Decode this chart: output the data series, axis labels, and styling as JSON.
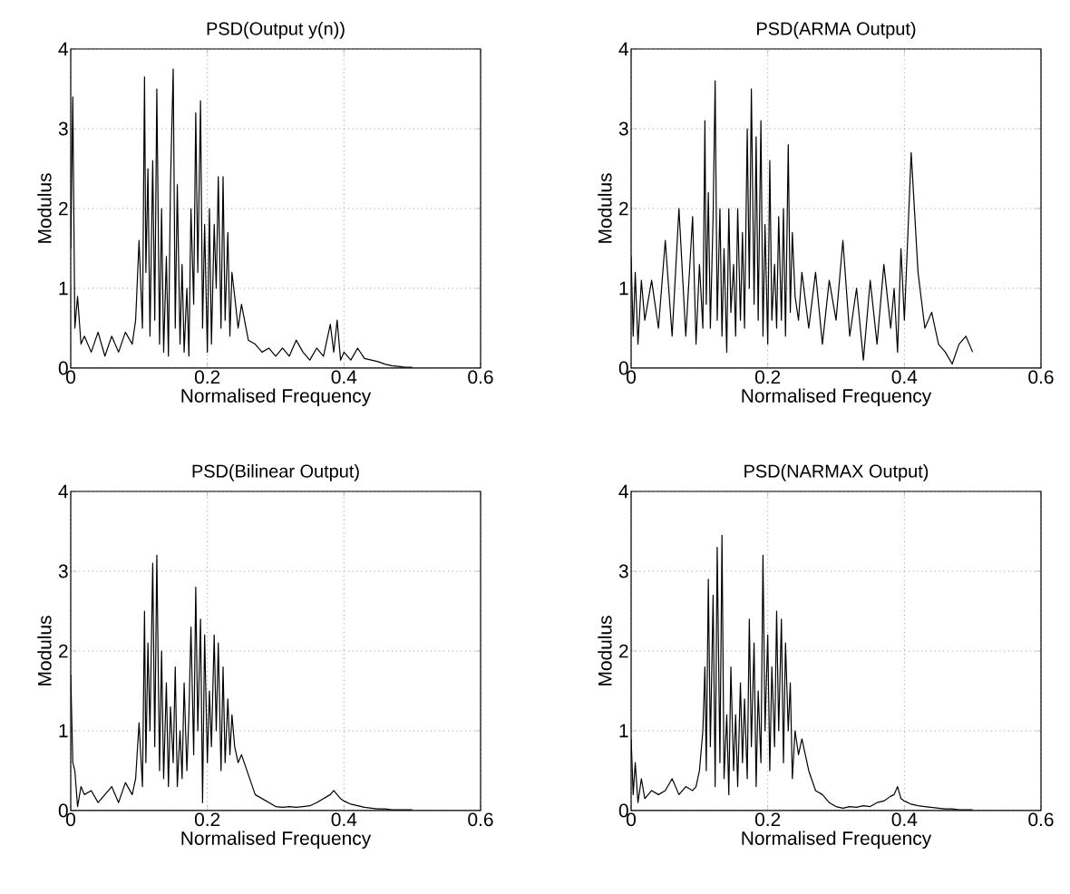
{
  "chart_data": [
    {
      "type": "line",
      "title": "PSD(Output y(n))",
      "xlabel": "Normalised Frequency",
      "ylabel": "Modulus",
      "color": "#000000",
      "xlim": [
        0,
        0.6
      ],
      "ylim": [
        0,
        4
      ],
      "xticks": [
        0,
        0.2,
        0.4,
        0.6
      ],
      "yticks": [
        0,
        1,
        2,
        3,
        4
      ],
      "grid": true,
      "x": [
        0,
        0.003,
        0.006,
        0.01,
        0.015,
        0.02,
        0.03,
        0.04,
        0.05,
        0.06,
        0.07,
        0.08,
        0.09,
        0.095,
        0.1,
        0.105,
        0.108,
        0.11,
        0.113,
        0.116,
        0.12,
        0.123,
        0.126,
        0.13,
        0.133,
        0.136,
        0.14,
        0.143,
        0.146,
        0.15,
        0.153,
        0.156,
        0.16,
        0.163,
        0.166,
        0.17,
        0.173,
        0.176,
        0.18,
        0.183,
        0.186,
        0.19,
        0.193,
        0.196,
        0.2,
        0.203,
        0.206,
        0.21,
        0.213,
        0.216,
        0.22,
        0.223,
        0.226,
        0.23,
        0.233,
        0.236,
        0.24,
        0.245,
        0.25,
        0.26,
        0.27,
        0.28,
        0.29,
        0.3,
        0.31,
        0.32,
        0.33,
        0.34,
        0.35,
        0.36,
        0.37,
        0.38,
        0.385,
        0.39,
        0.395,
        0.4,
        0.41,
        0.42,
        0.43,
        0.44,
        0.45,
        0.46,
        0.47,
        0.48,
        0.49,
        0.5
      ],
      "values": [
        1.5,
        3.4,
        0.5,
        0.9,
        0.3,
        0.4,
        0.2,
        0.45,
        0.15,
        0.4,
        0.2,
        0.45,
        0.3,
        0.6,
        1.6,
        0.5,
        3.65,
        1.2,
        2.5,
        0.4,
        2.6,
        0.6,
        3.5,
        0.3,
        2.0,
        0.2,
        1.4,
        0.15,
        2.3,
        3.75,
        0.5,
        2.3,
        0.3,
        1.3,
        0.2,
        1.0,
        0.15,
        2.0,
        0.8,
        3.2,
        1.2,
        3.35,
        0.5,
        1.8,
        0.2,
        2.0,
        0.3,
        1.8,
        1.0,
        2.4,
        0.5,
        2.4,
        0.6,
        1.7,
        0.4,
        1.2,
        0.9,
        0.5,
        0.8,
        0.35,
        0.3,
        0.2,
        0.25,
        0.15,
        0.25,
        0.15,
        0.35,
        0.2,
        0.1,
        0.25,
        0.15,
        0.55,
        0.2,
        0.6,
        0.1,
        0.2,
        0.1,
        0.25,
        0.12,
        0.1,
        0.08,
        0.05,
        0.03,
        0.02,
        0.01,
        0.01
      ]
    },
    {
      "type": "line",
      "title": "PSD(ARMA Output)",
      "xlabel": "Normalised Frequency",
      "ylabel": "Modulus",
      "color": "#000000",
      "xlim": [
        0,
        0.6
      ],
      "ylim": [
        0,
        4
      ],
      "xticks": [
        0,
        0.2,
        0.4,
        0.6
      ],
      "yticks": [
        0,
        1,
        2,
        3,
        4
      ],
      "grid": true,
      "x": [
        0,
        0.003,
        0.006,
        0.01,
        0.015,
        0.02,
        0.03,
        0.04,
        0.05,
        0.06,
        0.07,
        0.08,
        0.09,
        0.095,
        0.1,
        0.105,
        0.108,
        0.11,
        0.113,
        0.116,
        0.12,
        0.123,
        0.126,
        0.13,
        0.133,
        0.136,
        0.14,
        0.143,
        0.146,
        0.15,
        0.153,
        0.156,
        0.16,
        0.163,
        0.166,
        0.17,
        0.173,
        0.176,
        0.18,
        0.183,
        0.186,
        0.19,
        0.193,
        0.196,
        0.2,
        0.203,
        0.206,
        0.21,
        0.213,
        0.216,
        0.22,
        0.223,
        0.226,
        0.23,
        0.233,
        0.236,
        0.24,
        0.245,
        0.25,
        0.26,
        0.27,
        0.28,
        0.29,
        0.3,
        0.31,
        0.32,
        0.33,
        0.34,
        0.35,
        0.36,
        0.37,
        0.38,
        0.385,
        0.39,
        0.395,
        0.4,
        0.41,
        0.42,
        0.43,
        0.44,
        0.45,
        0.46,
        0.47,
        0.48,
        0.49,
        0.5
      ],
      "values": [
        1.4,
        0.4,
        1.2,
        0.3,
        1.1,
        0.6,
        1.1,
        0.5,
        1.6,
        0.4,
        2.0,
        0.4,
        1.9,
        0.3,
        1.3,
        0.5,
        3.1,
        0.8,
        2.2,
        0.5,
        1.9,
        3.6,
        0.6,
        2.0,
        0.4,
        1.5,
        0.2,
        2.0,
        0.7,
        1.3,
        0.4,
        2.0,
        0.6,
        1.7,
        0.5,
        3.0,
        1.0,
        3.5,
        0.8,
        2.9,
        0.6,
        3.1,
        0.4,
        1.8,
        0.3,
        2.6,
        0.6,
        1.3,
        0.5,
        1.9,
        0.6,
        2.0,
        0.4,
        2.8,
        0.7,
        1.7,
        0.9,
        0.6,
        1.2,
        0.5,
        1.2,
        0.3,
        1.1,
        0.6,
        1.6,
        0.4,
        1.0,
        0.1,
        1.1,
        0.3,
        1.3,
        0.5,
        1.0,
        0.2,
        1.5,
        0.6,
        2.7,
        1.2,
        0.5,
        0.7,
        0.3,
        0.2,
        0.05,
        0.3,
        0.4,
        0.2
      ]
    },
    {
      "type": "line",
      "title": "PSD(Bilinear Output)",
      "xlabel": "Normalised Frequency",
      "ylabel": "Modulus",
      "color": "#000000",
      "xlim": [
        0,
        0.6
      ],
      "ylim": [
        0,
        4
      ],
      "xticks": [
        0,
        0.2,
        0.4,
        0.6
      ],
      "yticks": [
        0,
        1,
        2,
        3,
        4
      ],
      "grid": true,
      "x": [
        0,
        0.003,
        0.006,
        0.01,
        0.015,
        0.02,
        0.03,
        0.04,
        0.05,
        0.06,
        0.07,
        0.08,
        0.09,
        0.095,
        0.1,
        0.105,
        0.108,
        0.11,
        0.113,
        0.116,
        0.12,
        0.123,
        0.126,
        0.13,
        0.133,
        0.136,
        0.14,
        0.143,
        0.146,
        0.15,
        0.153,
        0.156,
        0.16,
        0.163,
        0.166,
        0.17,
        0.173,
        0.176,
        0.18,
        0.183,
        0.186,
        0.19,
        0.193,
        0.196,
        0.2,
        0.203,
        0.206,
        0.21,
        0.213,
        0.216,
        0.22,
        0.223,
        0.226,
        0.23,
        0.233,
        0.236,
        0.24,
        0.245,
        0.25,
        0.26,
        0.27,
        0.28,
        0.29,
        0.3,
        0.31,
        0.32,
        0.33,
        0.34,
        0.35,
        0.36,
        0.37,
        0.38,
        0.385,
        0.39,
        0.395,
        0.4,
        0.41,
        0.42,
        0.43,
        0.44,
        0.45,
        0.46,
        0.47,
        0.48,
        0.49,
        0.5
      ],
      "values": [
        1.7,
        0.6,
        0.5,
        0.05,
        0.3,
        0.2,
        0.25,
        0.1,
        0.2,
        0.3,
        0.1,
        0.35,
        0.2,
        0.4,
        1.1,
        0.3,
        2.5,
        0.6,
        2.1,
        1.0,
        3.1,
        0.8,
        3.2,
        0.5,
        2.0,
        0.4,
        1.6,
        0.3,
        1.3,
        0.6,
        1.8,
        0.3,
        1.0,
        0.4,
        1.6,
        0.5,
        1.2,
        2.3,
        0.7,
        2.8,
        1.0,
        2.4,
        0.1,
        2.2,
        0.6,
        1.5,
        0.8,
        2.2,
        1.0,
        2.1,
        0.5,
        1.8,
        0.6,
        1.4,
        0.7,
        1.2,
        0.8,
        0.6,
        0.7,
        0.45,
        0.2,
        0.15,
        0.1,
        0.05,
        0.04,
        0.05,
        0.04,
        0.05,
        0.06,
        0.1,
        0.15,
        0.2,
        0.25,
        0.2,
        0.15,
        0.12,
        0.08,
        0.06,
        0.04,
        0.03,
        0.02,
        0.02,
        0.01,
        0.01,
        0.01,
        0.01
      ]
    },
    {
      "type": "line",
      "title": "PSD(NARMAX Output)",
      "xlabel": "Normalised Frequency",
      "ylabel": "Modulus",
      "color": "#000000",
      "xlim": [
        0,
        0.6
      ],
      "ylim": [
        0,
        4
      ],
      "xticks": [
        0,
        0.2,
        0.4,
        0.6
      ],
      "yticks": [
        0,
        1,
        2,
        3,
        4
      ],
      "grid": true,
      "x": [
        0,
        0.003,
        0.006,
        0.01,
        0.015,
        0.02,
        0.03,
        0.04,
        0.05,
        0.06,
        0.07,
        0.08,
        0.09,
        0.095,
        0.1,
        0.105,
        0.108,
        0.11,
        0.113,
        0.116,
        0.12,
        0.123,
        0.126,
        0.13,
        0.133,
        0.136,
        0.14,
        0.143,
        0.146,
        0.15,
        0.153,
        0.156,
        0.16,
        0.163,
        0.166,
        0.17,
        0.173,
        0.176,
        0.18,
        0.183,
        0.186,
        0.19,
        0.193,
        0.196,
        0.2,
        0.203,
        0.206,
        0.21,
        0.213,
        0.216,
        0.22,
        0.223,
        0.226,
        0.23,
        0.233,
        0.236,
        0.24,
        0.245,
        0.25,
        0.26,
        0.27,
        0.28,
        0.29,
        0.3,
        0.31,
        0.32,
        0.33,
        0.34,
        0.35,
        0.36,
        0.37,
        0.38,
        0.385,
        0.39,
        0.395,
        0.4,
        0.41,
        0.42,
        0.43,
        0.44,
        0.45,
        0.46,
        0.47,
        0.48,
        0.49,
        0.5
      ],
      "values": [
        0.9,
        0.2,
        0.6,
        0.1,
        0.4,
        0.15,
        0.25,
        0.2,
        0.25,
        0.4,
        0.2,
        0.3,
        0.25,
        0.3,
        0.5,
        1.0,
        1.8,
        0.5,
        2.9,
        0.8,
        2.7,
        0.3,
        3.3,
        0.6,
        3.45,
        0.4,
        1.2,
        0.2,
        1.8,
        0.5,
        1.2,
        0.3,
        1.6,
        0.6,
        1.4,
        0.4,
        2.4,
        0.8,
        2.1,
        0.3,
        1.5,
        0.6,
        3.2,
        1.0,
        2.2,
        0.5,
        1.8,
        0.8,
        2.5,
        1.0,
        2.4,
        0.6,
        2.1,
        1.0,
        1.6,
        0.4,
        1.0,
        0.7,
        0.9,
        0.5,
        0.25,
        0.2,
        0.1,
        0.05,
        0.03,
        0.05,
        0.04,
        0.06,
        0.05,
        0.1,
        0.12,
        0.18,
        0.2,
        0.3,
        0.15,
        0.12,
        0.08,
        0.06,
        0.05,
        0.04,
        0.03,
        0.02,
        0.02,
        0.01,
        0.01,
        0.01
      ]
    }
  ]
}
